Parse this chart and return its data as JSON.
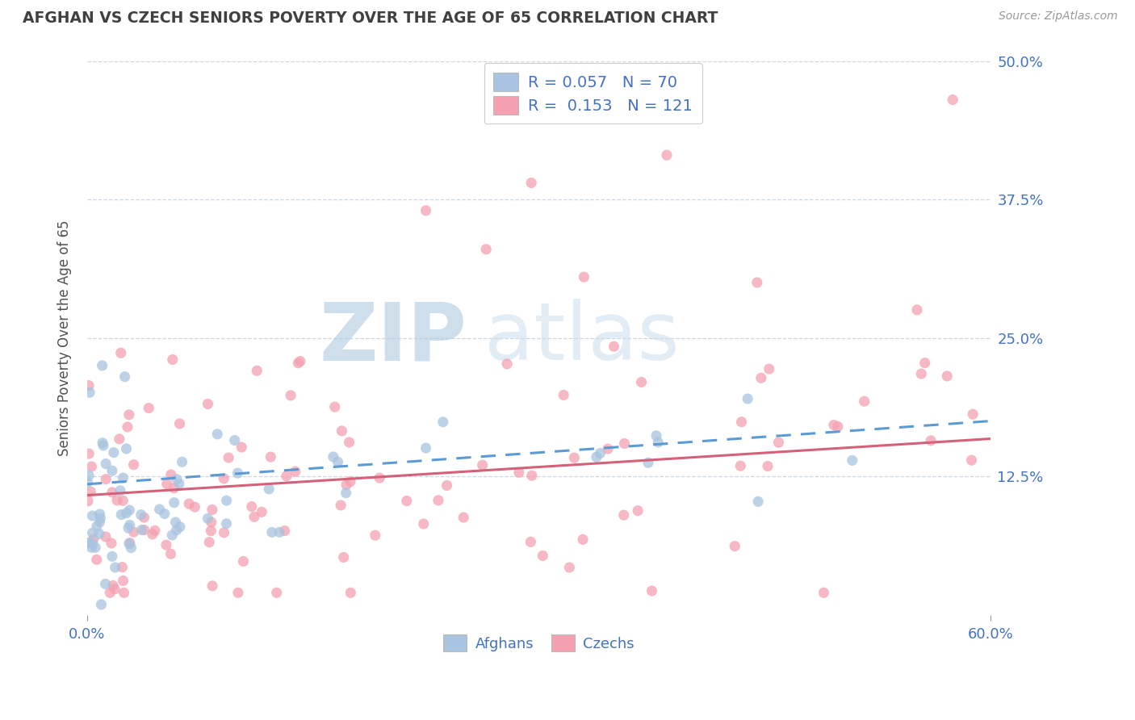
{
  "title": "AFGHAN VS CZECH SENIORS POVERTY OVER THE AGE OF 65 CORRELATION CHART",
  "source_text": "Source: ZipAtlas.com",
  "ylabel": "Seniors Poverty Over the Age of 65",
  "afghan_color": "#a8c4e0",
  "czech_color": "#f4a0b0",
  "afghan_trend_color": "#5b9bd5",
  "czech_trend_color": "#d4607a",
  "afghan_R": 0.057,
  "afghan_N": 70,
  "czech_R": 0.153,
  "czech_N": 121,
  "watermark_zip_color": "#b8cfe0",
  "watermark_atlas_color": "#c8dce8",
  "title_color": "#404040",
  "tick_label_color": "#4472c4",
  "grid_color": "#c0cdd8",
  "background_color": "#ffffff",
  "xlim": [
    0.0,
    0.6
  ],
  "ylim": [
    0.0,
    0.5
  ],
  "yticks": [
    0.125,
    0.25,
    0.375,
    0.5
  ],
  "ytick_labels": [
    "12.5%",
    "25.0%",
    "37.5%",
    "50.0%"
  ]
}
